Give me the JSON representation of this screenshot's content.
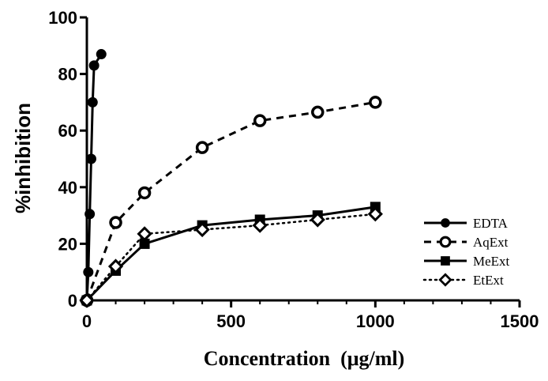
{
  "chart_data": {
    "type": "line",
    "title": "",
    "xlabel": "Concentration  (μg/ml)",
    "ylabel": "%inhibition",
    "xlim": [
      0,
      1500
    ],
    "ylim": [
      0,
      100
    ],
    "xticks": [
      0,
      500,
      1000,
      1500
    ],
    "yticks": [
      0,
      20,
      40,
      60,
      80,
      100
    ],
    "x_minor_step": 100,
    "grid": false,
    "legend_position": "right",
    "series": [
      {
        "name": "EDTA",
        "line_style": "solid",
        "marker": "filled-circle",
        "color": "#000000",
        "x": [
          0,
          5,
          10,
          15,
          20,
          25,
          50
        ],
        "y": [
          0,
          10,
          30.5,
          50,
          70,
          83,
          87
        ]
      },
      {
        "name": "AqExt",
        "line_style": "dashed",
        "marker": "open-circle",
        "color": "#000000",
        "x": [
          0,
          100,
          200,
          400,
          600,
          800,
          1000
        ],
        "y": [
          0,
          27.5,
          38,
          54,
          63.5,
          66.5,
          70
        ]
      },
      {
        "name": "MeExt",
        "line_style": "solid",
        "marker": "filled-square",
        "color": "#000000",
        "x": [
          0,
          100,
          200,
          400,
          600,
          800,
          1000
        ],
        "y": [
          0,
          10.5,
          20,
          26.5,
          28.5,
          30,
          33
        ]
      },
      {
        "name": "EtExt",
        "line_style": "dotted",
        "marker": "open-diamond",
        "color": "#000000",
        "x": [
          0,
          100,
          200,
          400,
          600,
          800,
          1000
        ],
        "y": [
          0,
          12,
          23.5,
          25,
          26.5,
          28.5,
          30.5
        ]
      }
    ]
  }
}
